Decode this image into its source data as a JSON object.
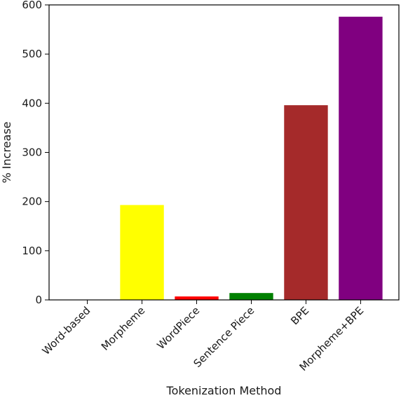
{
  "chart_data": {
    "type": "bar",
    "title": "",
    "xlabel": "Tokenization Method",
    "ylabel": "% Increase",
    "categories": [
      "Word-based",
      "Morpheme",
      "WordPiece",
      "Sentence Piece",
      "BPE",
      "Morpheme+BPE"
    ],
    "values": [
      0,
      193,
      7,
      14,
      396,
      576
    ],
    "colors": [
      "#1f77b4",
      "#ffff00",
      "#ff0000",
      "#008000",
      "#a52a2a",
      "#800080"
    ],
    "ylim": [
      0,
      600
    ],
    "yticks": [
      0,
      100,
      200,
      300,
      400,
      500,
      600
    ],
    "grid": false,
    "legend": "none"
  }
}
